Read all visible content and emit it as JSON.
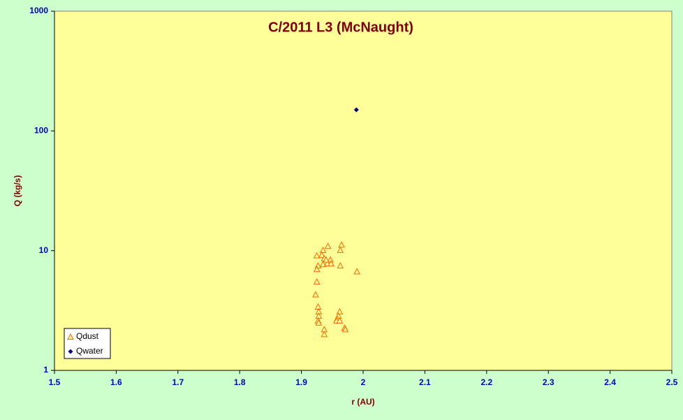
{
  "chart_data": {
    "type": "scatter",
    "title": "C/2011 L3 (McNaught)",
    "x_label": "r (AU)",
    "y_label": "Q (kg/s)",
    "xlim": [
      1.5,
      2.5
    ],
    "xticks": [
      1.5,
      1.6,
      1.7,
      1.8,
      1.9,
      2,
      2.1,
      2.2,
      2.3,
      2.4,
      2.5
    ],
    "ylim": [
      1,
      1000
    ],
    "yticks": [
      1,
      10,
      100,
      1000
    ],
    "y_log": true,
    "legend": "lower left",
    "series": [
      {
        "name": "Qdust",
        "color": "#ff6600",
        "marker": "triangle",
        "x": [
          1.925,
          1.935,
          1.943,
          1.965,
          1.963,
          1.927,
          1.925,
          1.933,
          1.937,
          1.938,
          1.935,
          1.942,
          1.947,
          1.948,
          1.94,
          1.963,
          1.99,
          1.925,
          1.923,
          1.927,
          1.928,
          1.928,
          1.927,
          1.928,
          1.962,
          1.96,
          1.958,
          1.957,
          1.962,
          1.937,
          1.937,
          1.97,
          1.971
        ],
        "values": [
          9.1,
          10.1,
          10.9,
          11.2,
          10.1,
          7.5,
          7.0,
          9.2,
          8.6,
          8.0,
          7.7,
          7.8,
          8.4,
          7.8,
          8.4,
          7.5,
          6.7,
          5.5,
          4.3,
          3.4,
          3.1,
          2.85,
          2.6,
          2.5,
          3.1,
          2.85,
          2.7,
          2.6,
          2.6,
          2.2,
          2.0,
          2.27,
          2.2
        ]
      },
      {
        "name": "Qwater",
        "color": "#000080",
        "marker": "diamond",
        "x": [
          1.989
        ],
        "values": [
          150
        ]
      }
    ]
  }
}
